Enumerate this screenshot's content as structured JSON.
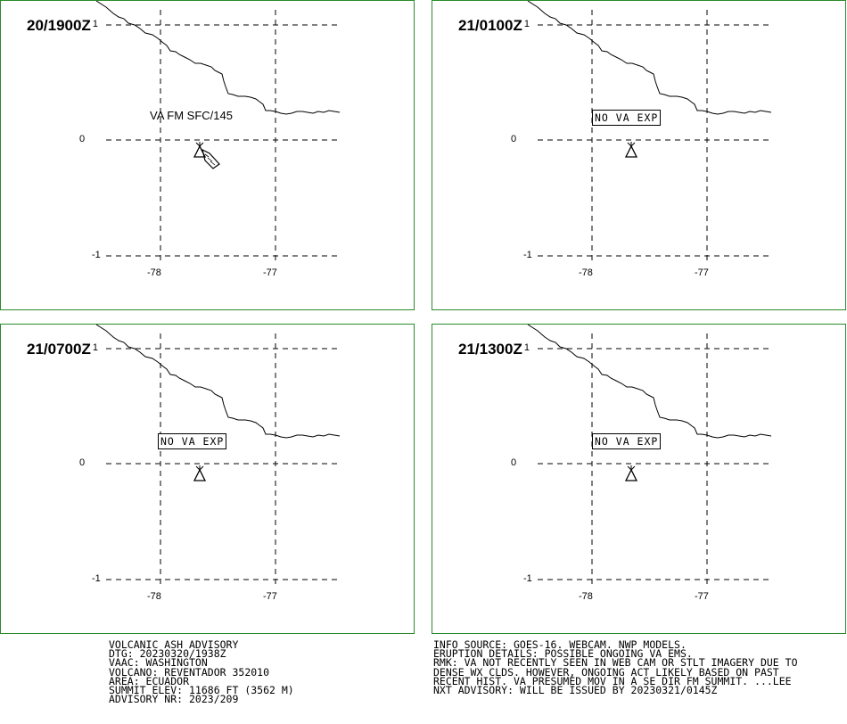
{
  "panels": [
    {
      "time": "20/1900Z",
      "sup": "1",
      "note": "VA FM SFC/145",
      "boxed_note": "",
      "plume": true
    },
    {
      "time": "21/0100Z",
      "sup": "1",
      "note": "",
      "boxed_note": "NO VA EXP",
      "plume": false
    },
    {
      "time": "21/0700Z",
      "sup": "1",
      "note": "",
      "boxed_note": "NO VA EXP",
      "plume": false
    },
    {
      "time": "21/1300Z",
      "sup": "1",
      "note": "",
      "boxed_note": "NO VA EXP",
      "plume": false
    }
  ],
  "axes": {
    "lat_labels": [
      "0",
      "-1"
    ],
    "lon_labels": [
      "-78",
      "-77"
    ]
  },
  "advisory_left": [
    "VOLCANIC ASH ADVISORY",
    "DTG: 20230320/1938Z",
    "VAAC: WASHINGTON",
    "VOLCANO: REVENTADOR 352010",
    "AREA: ECUADOR",
    "SUMMIT ELEV: 11686 FT (3562 M)",
    "ADVISORY NR: 2023/209"
  ],
  "advisory_right": [
    "INFO SOURCE: GOES-16. WEBCAM. NWP MODELS.",
    "ERUPTION DETAILS: POSSIBLE ONGOING VA EMS.",
    "RMK: VA NOT RECENTLY SEEN IN WEB CAM OR STLT IMAGERY DUE TO",
    "DENSE WX CLDS. HOWEVER, ONGOING ACT LIKELY BASED ON PAST",
    "RECENT HIST. VA PRESUMED MOV IN A SE DIR FM SUMMIT. ...LEE",
    "NXT ADVISORY: WILL BE ISSUED BY 20230321/0145Z"
  ],
  "colors": {
    "panel_border": "#2a8a2a",
    "ink": "#000000"
  }
}
